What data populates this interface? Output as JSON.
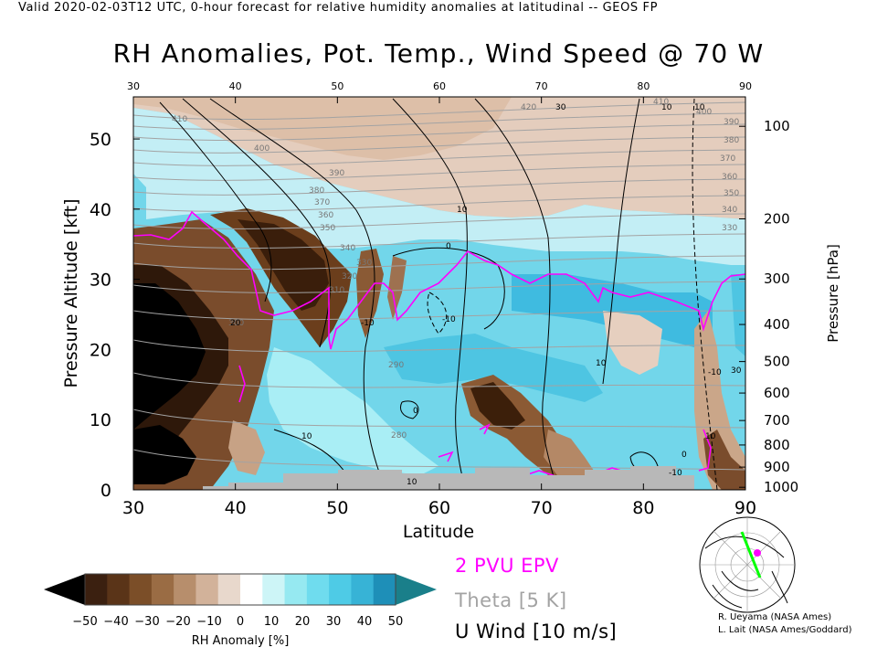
{
  "header": "Valid 2020-02-03T12 UTC, 0-hour forecast for relative humidity anomalies at latitudinal -- GEOS FP",
  "chart_data": {
    "type": "heatmap",
    "title": "RH Anomalies, Pot. Temp., Wind Speed @ 70 W",
    "xlabel": "Latitude",
    "ylabel_left": "Pressure Altitude [kft]",
    "ylabel_right": "Pressure [hPa]",
    "xlim": [
      30,
      90
    ],
    "ylim_kft": [
      0,
      56
    ],
    "x_ticks": [
      "30",
      "40",
      "50",
      "60",
      "70",
      "80",
      "90"
    ],
    "y_ticks_left": [
      "0",
      "10",
      "20",
      "30",
      "40",
      "50"
    ],
    "y_ticks_right": [
      "1000",
      "900",
      "800",
      "700",
      "600",
      "500",
      "400",
      "300",
      "200",
      "100"
    ],
    "colorbar": {
      "label": "RH Anomaly [%]",
      "ticks": [
        "−50",
        "−40",
        "−30",
        "−20",
        "−10",
        "0",
        "10",
        "20",
        "30",
        "40",
        "50"
      ],
      "colors": [
        "#000000",
        "#3b2010",
        "#5a3418",
        "#7b4e28",
        "#9a6c44",
        "#b78e6c",
        "#d2b29a",
        "#e8d8cc",
        "#ffffff",
        "#cdf5f7",
        "#96e9f1",
        "#6fdcee",
        "#4ecbe6",
        "#37b3d6",
        "#1e8fb8",
        "#1a7f8a"
      ]
    },
    "contour_labels": {
      "theta": [
        "410",
        "400",
        "390",
        "380",
        "370",
        "360",
        "350",
        "340",
        "330",
        "320",
        "310",
        "300",
        "290",
        "280",
        "420",
        "410",
        "400",
        "390",
        "380",
        "370",
        "360",
        "350",
        "340",
        "330"
      ],
      "u_wind": [
        "30",
        "0",
        "10",
        "-10",
        "10",
        "0",
        "10",
        "-10",
        "10",
        "10",
        "10",
        "0",
        "20",
        "-10",
        "30",
        "-10",
        "10"
      ]
    },
    "legend": [
      {
        "label": "2 PVU EPV",
        "color": "#ff00ff"
      },
      {
        "label": "Theta [5 K]",
        "color": "#999999"
      },
      {
        "label": "U Wind [10 m/s]",
        "color": "#000000"
      }
    ]
  },
  "credits": [
    "R. Ueyama (NASA Ames)",
    "L. Lait (NASA Ames/Goddard)"
  ]
}
